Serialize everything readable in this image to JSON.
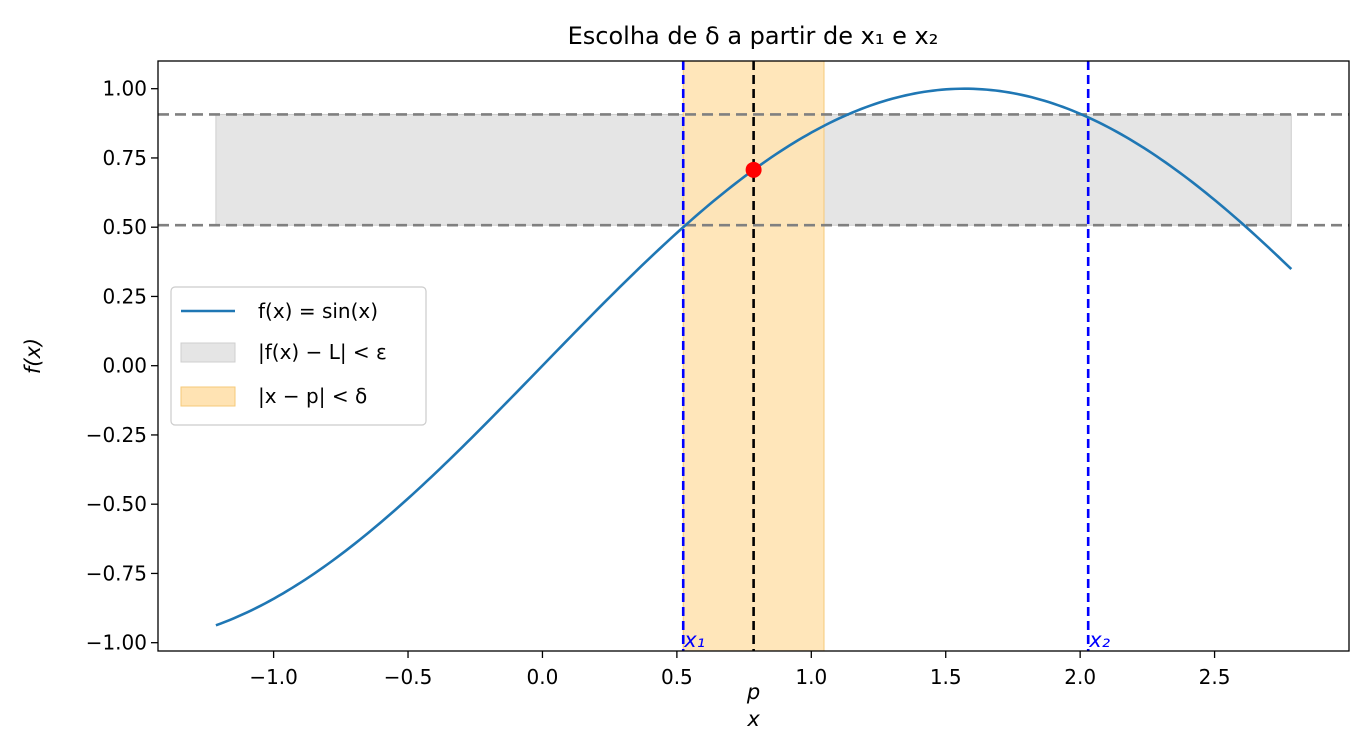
{
  "chart_data": {
    "type": "line",
    "title": "Escolha de δ a partir de x₁ e x₂",
    "xlabel": "x",
    "ylabel": "f(x)",
    "xlim": [
      -1.43,
      3.0
    ],
    "ylim": [
      -1.03,
      1.1
    ],
    "xticks": [
      -1.0,
      -0.5,
      0.0,
      0.5,
      1.0,
      1.5,
      2.0,
      2.5
    ],
    "xtick_labels": [
      "−1.0",
      "−0.5",
      "0.0",
      "0.5",
      "1.0",
      "1.5",
      "2.0",
      "2.5"
    ],
    "yticks": [
      1.0,
      0.75,
      0.5,
      0.25,
      0.0,
      -0.25,
      -0.5,
      -0.75,
      -1.0
    ],
    "ytick_labels": [
      "1.00",
      "0.75",
      "0.50",
      "0.25",
      "0.00",
      "−0.25",
      "−0.50",
      "−0.75",
      "−1.00"
    ],
    "series": [
      {
        "name": "f(x) = sin(x)",
        "function": "sin",
        "x_range": [
          -1.2146,
          2.7854
        ],
        "color": "#1f77b4"
      }
    ],
    "point": {
      "x": 0.7854,
      "y": 0.7071,
      "color": "#ff0000",
      "label": "p"
    },
    "epsilon_band": {
      "y_range": [
        0.5071,
        0.9071
      ],
      "x_range": [
        -1.2146,
        2.7854
      ],
      "color": "#e5e5e5",
      "label": "|f(x) − L| < ε"
    },
    "delta_band": {
      "x_range": [
        0.5236,
        1.0472
      ],
      "color": "#ffe3b3",
      "label": "|x − p| < δ"
    },
    "hlines": [
      0.9071,
      0.5071
    ],
    "vlines": [
      {
        "x": 0.5236,
        "color": "#0000ff",
        "label": "x₁"
      },
      {
        "x": 2.0299,
        "color": "#0000ff",
        "label": "x₂"
      },
      {
        "x": 0.7854,
        "color": "#000000"
      }
    ],
    "legend_position": "center-left",
    "grid": false
  }
}
